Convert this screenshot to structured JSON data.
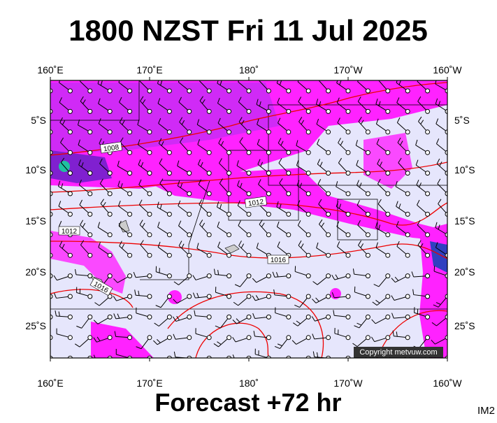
{
  "title": "1800 NZST Fri 11 Jul 2025",
  "subtitle": "Forecast +72 hr",
  "corner_label": "IM2",
  "copyright": "Copyright metvuw.com",
  "map": {
    "lon_labels": [
      "160˚E",
      "170˚E",
      "180˚",
      "170˚W",
      "160˚W"
    ],
    "lat_labels": [
      "5˚S",
      "10˚S",
      "15˚S",
      "20˚S",
      "25˚S"
    ],
    "isobar_labels": [
      "1008",
      "1012",
      "1012",
      "1016",
      "1016"
    ]
  }
}
